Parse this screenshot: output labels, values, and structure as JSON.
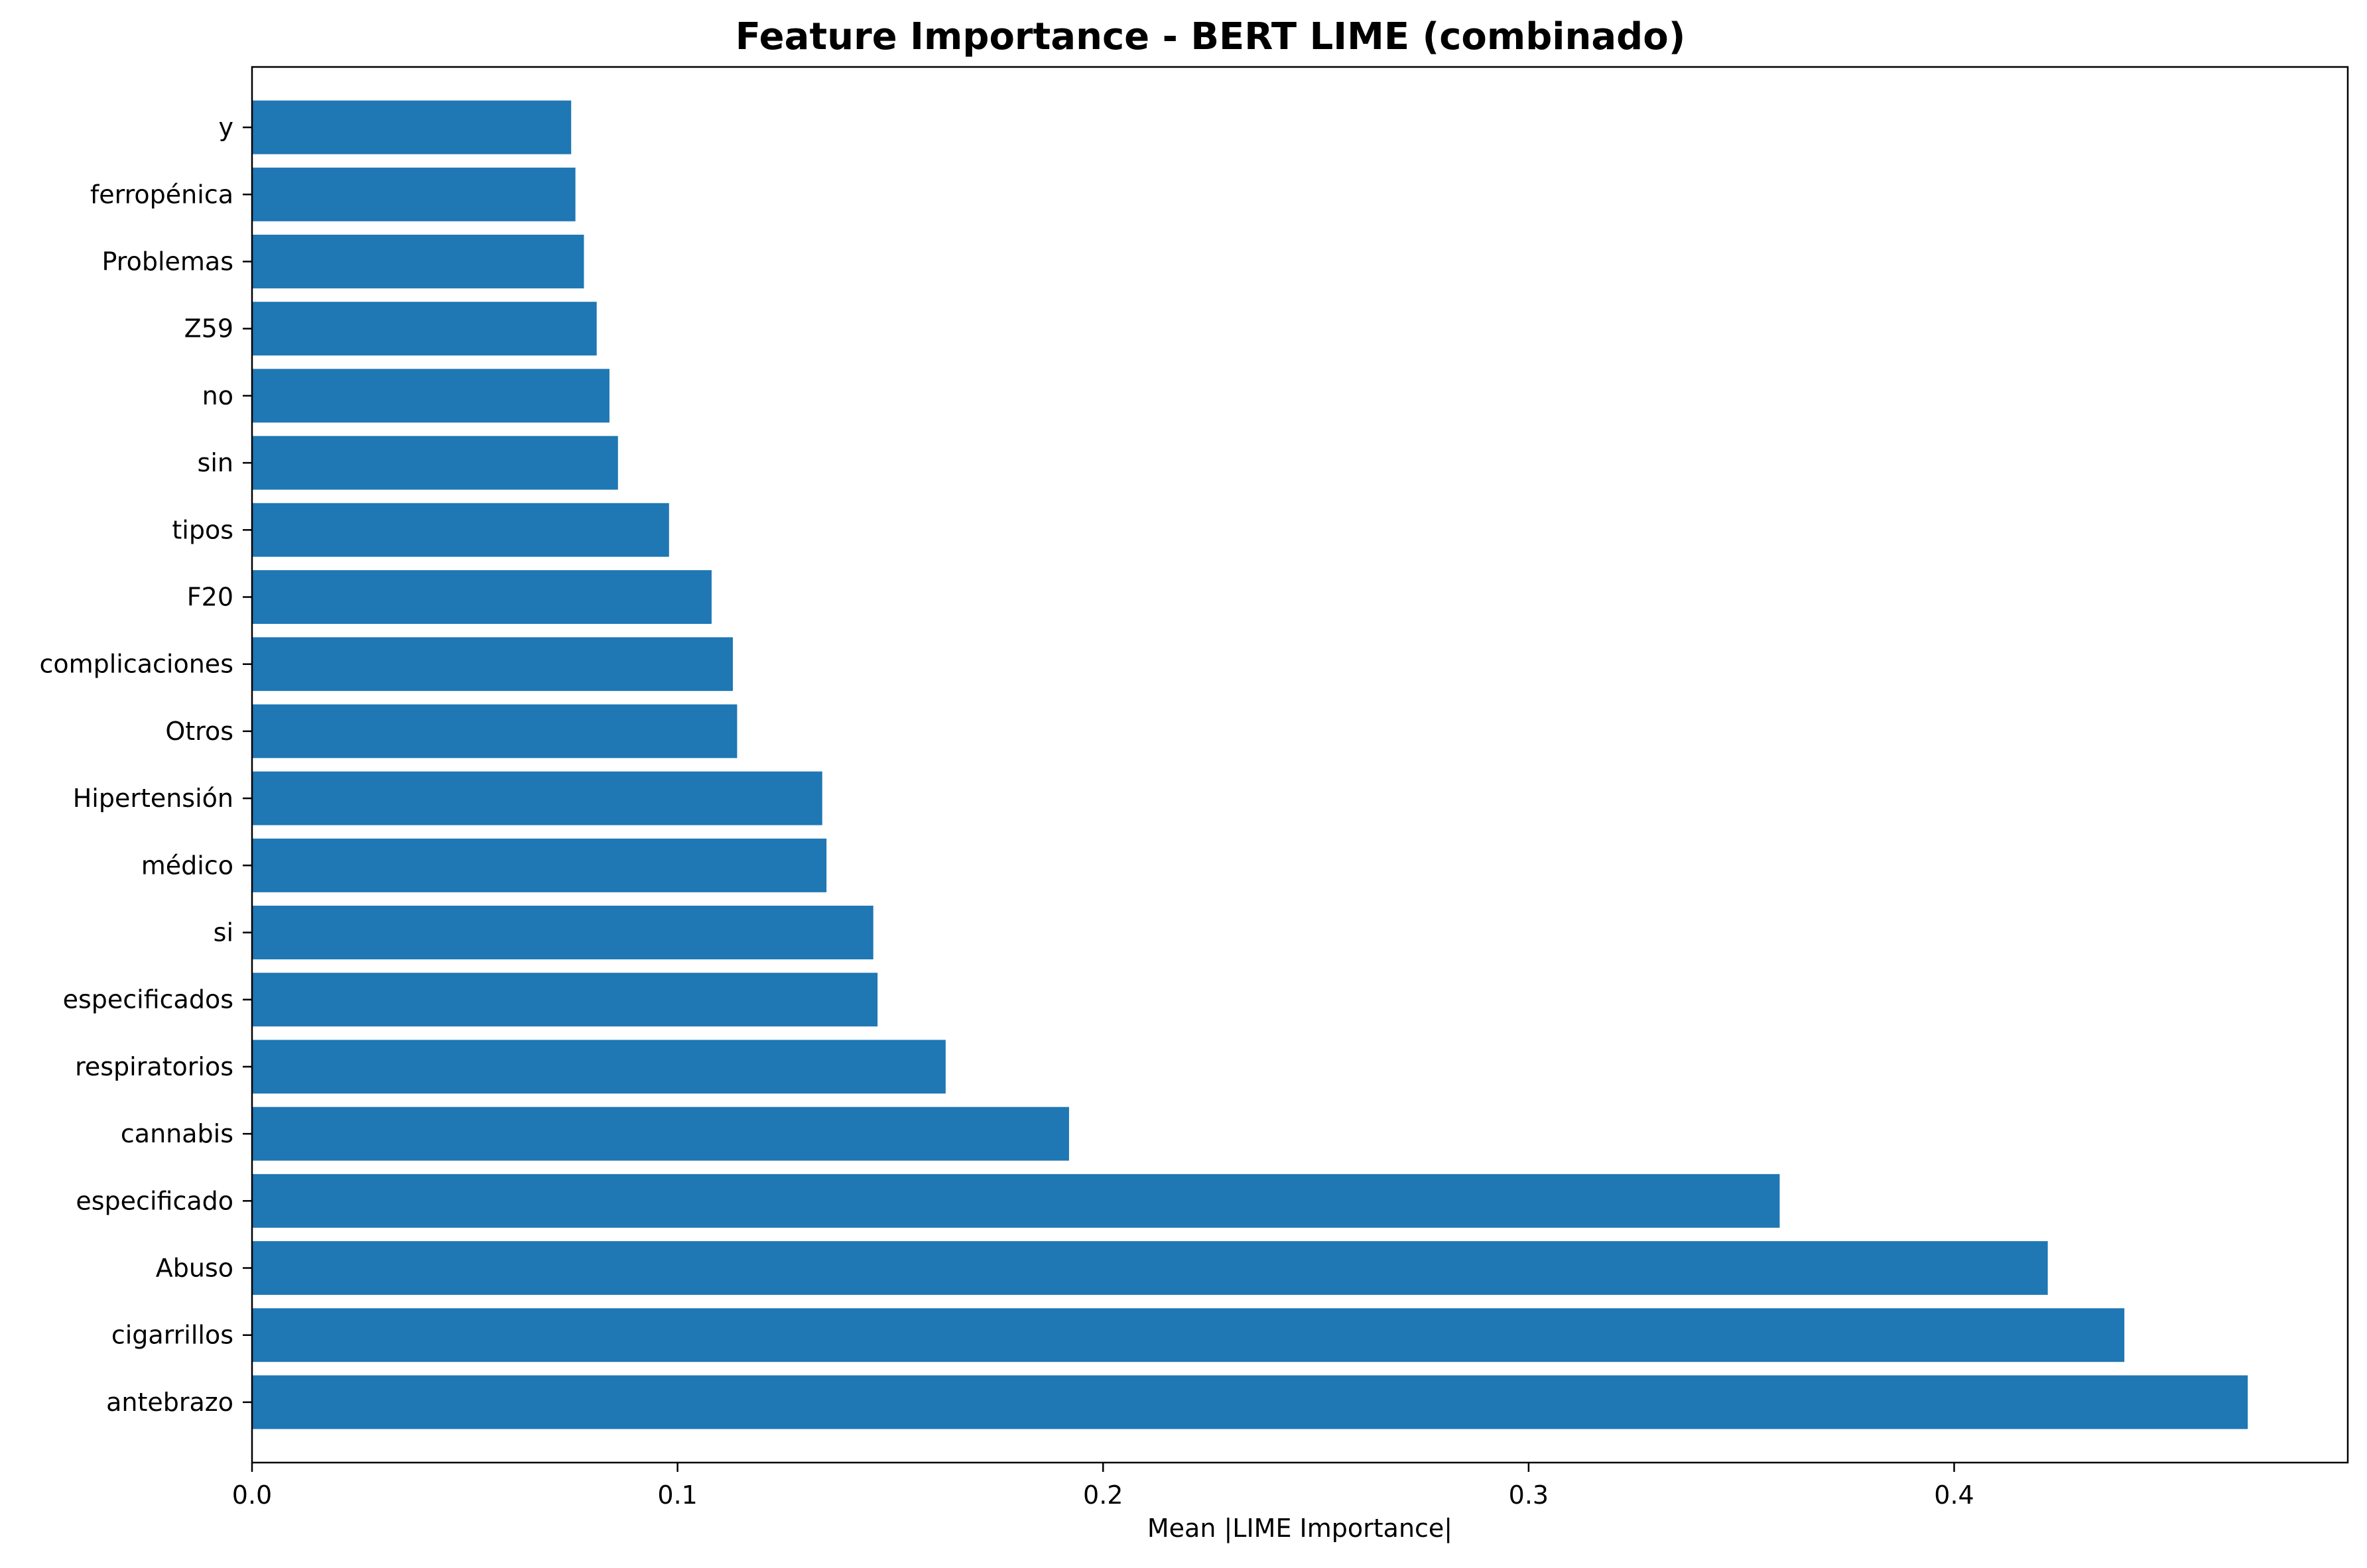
{
  "chart_data": {
    "type": "bar",
    "orientation": "horizontal",
    "title": "Feature Importance - BERT LIME (combinado)",
    "xlabel": "Mean |LIME Importance|",
    "ylabel": "",
    "xlim": [
      0,
      0.4925
    ],
    "xticks": [
      0.0,
      0.1,
      0.2,
      0.3,
      0.4
    ],
    "xtick_labels": [
      "0.0",
      "0.1",
      "0.2",
      "0.3",
      "0.4"
    ],
    "grid": false,
    "bar_color": "#1f77b4",
    "categories": [
      "antebrazo",
      "cigarrillos",
      "Abuso",
      "especificado",
      "cannabis",
      "respiratorios",
      "especificados",
      "si",
      "médico",
      "Hipertensión",
      "Otros",
      "complicaciones",
      "F20",
      "tipos",
      "sin",
      "no",
      "Z59",
      "Problemas",
      "ferropénica",
      "y"
    ],
    "values": [
      0.469,
      0.44,
      0.422,
      0.359,
      0.192,
      0.163,
      0.147,
      0.146,
      0.135,
      0.134,
      0.114,
      0.113,
      0.108,
      0.098,
      0.086,
      0.084,
      0.081,
      0.078,
      0.076,
      0.075
    ]
  }
}
